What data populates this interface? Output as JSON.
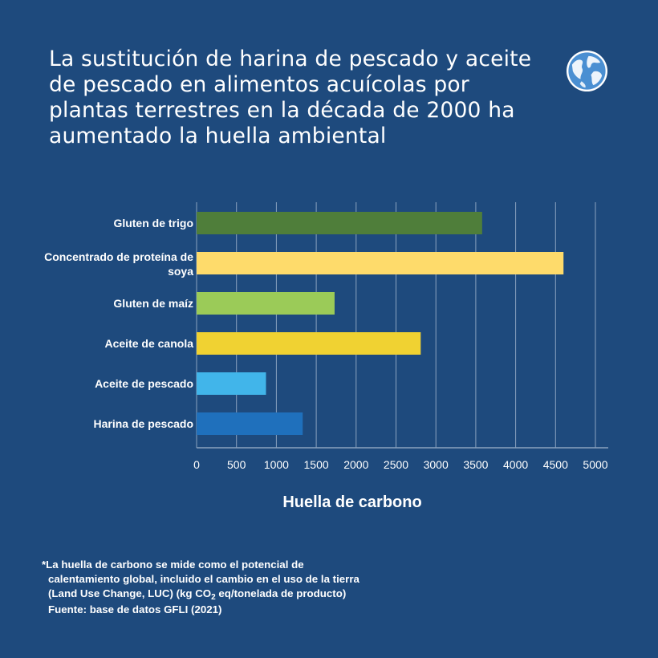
{
  "title": "La sustitución de harina de pescado y aceite de pescado en alimentos acuícolas por plantas terrestres en la década de 2000 ha aumentado la huella ambiental",
  "logo": {
    "icon": "globe-icon"
  },
  "chart_data": {
    "type": "bar",
    "orientation": "horizontal",
    "categories": [
      "Gluten de trigo",
      "Concentrado de proteína de soya",
      "Gluten de maíz",
      "Aceite de canola",
      "Aceite de pescado",
      "Harina de pescado"
    ],
    "values": [
      3580,
      4600,
      1730,
      2810,
      870,
      1330
    ],
    "colors": [
      "#4f7e3a",
      "#fedb6b",
      "#9bcb58",
      "#f0d232",
      "#41b5ea",
      "#1f70bc"
    ],
    "xlabel": "Huella de carbono",
    "ylabel": "",
    "xlim": [
      0,
      5000
    ],
    "xticks": [
      0,
      500,
      1000,
      1500,
      2000,
      2500,
      3000,
      3500,
      4000,
      4500,
      5000
    ],
    "grid": true
  },
  "footnote": {
    "line1": "*La huella de carbono se mide como el potencial de",
    "line2": "calentamiento global, incluido el cambio en el uso de la tierra",
    "line3_pre": "(Land Use Change, LUC) (kg CO",
    "line3_sub": "2",
    "line3_post": " eq/tonelada de producto)",
    "line4": "Fuente: base de datos GFLI (2021)"
  },
  "colors": {
    "background": "#1e4a7d",
    "grid": "#8aa2bf"
  }
}
